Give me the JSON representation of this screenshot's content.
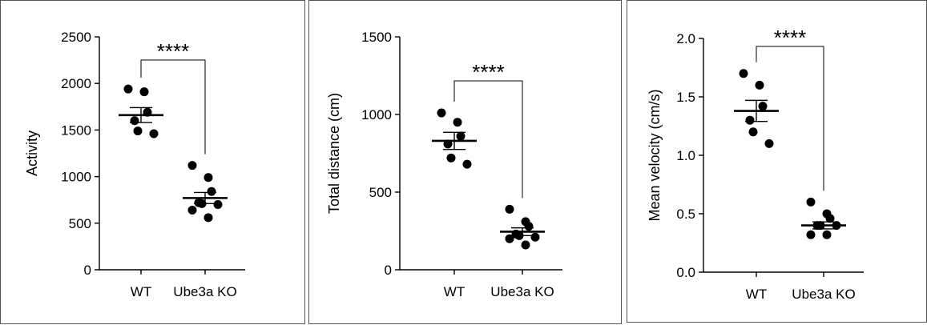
{
  "chart_data": [
    {
      "type": "scatter",
      "categories": [
        "WT",
        "Ube3a KO"
      ],
      "ylabel": "Activity",
      "ylim": [
        0,
        2500
      ],
      "yticks": [
        "0",
        "500",
        "1000",
        "1500",
        "2000",
        "2500"
      ],
      "ytick_values": [
        0,
        500,
        1000,
        1500,
        2000,
        2500
      ],
      "significance": "****",
      "series": [
        {
          "category": "WT",
          "values": [
            1940,
            1910,
            1690,
            1600,
            1490,
            1460
          ],
          "mean": 1660,
          "sem": 80
        },
        {
          "category": "Ube3a KO",
          "values": [
            1120,
            990,
            840,
            720,
            710,
            700,
            640,
            560
          ],
          "mean": 770,
          "sem": 60
        }
      ]
    },
    {
      "type": "scatter",
      "categories": [
        "WT",
        "Ube3a KO"
      ],
      "ylabel": "Total distance (cm)",
      "ylim": [
        0,
        1500
      ],
      "yticks": [
        "0",
        "500",
        "1000",
        "1500"
      ],
      "ytick_values": [
        0,
        500,
        1000,
        1500
      ],
      "significance": "****",
      "series": [
        {
          "category": "WT",
          "values": [
            1010,
            950,
            860,
            810,
            720,
            680
          ],
          "mean": 830,
          "sem": 55
        },
        {
          "category": "Ube3a KO",
          "values": [
            390,
            310,
            280,
            230,
            220,
            210,
            200,
            160
          ],
          "mean": 245,
          "sem": 25
        }
      ]
    },
    {
      "type": "scatter",
      "categories": [
        "WT",
        "Ube3a KO"
      ],
      "ylabel": "Mean velocity (cm/s)",
      "ylim": [
        0,
        2.0
      ],
      "yticks": [
        "0.0",
        "0.5",
        "1.0",
        "1.5",
        "2.0"
      ],
      "ytick_values": [
        0,
        0.5,
        1.0,
        1.5,
        2.0
      ],
      "significance": "****",
      "series": [
        {
          "category": "WT",
          "values": [
            1.7,
            1.6,
            1.42,
            1.3,
            1.2,
            1.1
          ],
          "mean": 1.38,
          "sem": 0.09
        },
        {
          "category": "Ube3a KO",
          "values": [
            0.6,
            0.5,
            0.46,
            0.4,
            0.4,
            0.4,
            0.32,
            0.32
          ],
          "mean": 0.4,
          "sem": 0.03
        }
      ]
    }
  ]
}
